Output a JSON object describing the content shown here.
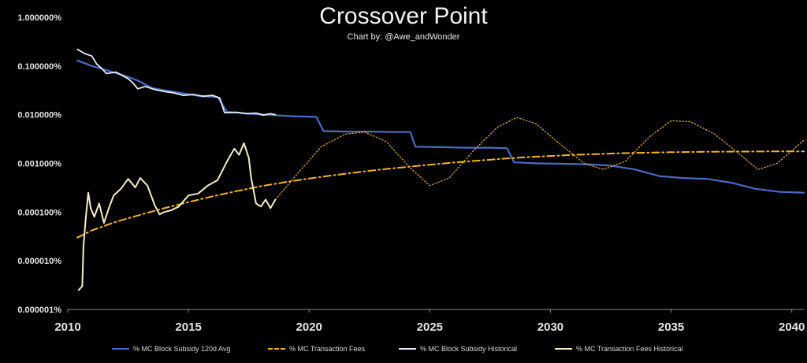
{
  "header": {
    "title": "Crossover Point",
    "subtitle": "Chart by: @Awe_andWonder"
  },
  "chart_data": {
    "type": "line",
    "title": "Crossover Point",
    "subtitle": "Chart by: @Awe_andWonder",
    "xlabel": "",
    "ylabel": "",
    "yscale": "log",
    "xlim": [
      2010,
      2040.5
    ],
    "ylim": [
      1e-08,
      0.01
    ],
    "y_ticks": [
      "0.000001%",
      "0.000010%",
      "0.000100%",
      "0.001000%",
      "0.010000%",
      "0.100000%",
      "1.000000%"
    ],
    "x_ticks": [
      "2010",
      "2015",
      "2020",
      "2025",
      "2030",
      "2035",
      "2040"
    ],
    "x_tick_values": [
      2010,
      2015,
      2020,
      2025,
      2030,
      2035,
      2040
    ],
    "grid": false,
    "legend_position": "bottom",
    "colors": {
      "subsidy_120d": "#4a6bc4",
      "fees_projection": "#f0b429",
      "subsidy_hist": "#e8edf5",
      "fees_hist": "#f6edc8"
    },
    "series": [
      {
        "name": "% MC Block Subsidy 120d Avg",
        "style": "solid",
        "x": [
          2010.4,
          2011,
          2011.5,
          2012.5,
          2012.9,
          2013.5,
          2014.5,
          2015.5,
          2016.2,
          2016.6,
          2017.5,
          2018.5,
          2019.3,
          2020.3,
          2020.6,
          2021.5,
          2022.5,
          2023.5,
          2024.2,
          2024.4,
          2025.5,
          2026.5,
          2027.5,
          2028.2,
          2028.5,
          2029.5,
          2030.5,
          2031.5,
          2032.5,
          2033.5,
          2034.5,
          2035.5,
          2036.5,
          2037.5,
          2038.5,
          2039.5,
          2040.5
        ],
        "y": [
          0.0013,
          0.001,
          0.00085,
          0.0006,
          0.0005,
          0.00035,
          0.00029,
          0.00024,
          0.00023,
          0.000115,
          0.000105,
          9.8e-05,
          9.3e-05,
          9e-05,
          4.6e-05,
          4.5e-05,
          4.5e-05,
          4.4e-05,
          4.4e-05,
          2.2e-05,
          2.15e-05,
          2.1e-05,
          2.1e-05,
          2.05e-05,
          1.05e-05,
          1e-05,
          9.8e-06,
          9.6e-06,
          9e-06,
          7.5e-06,
          5.5e-06,
          5e-06,
          4.8e-06,
          4e-06,
          3e-06,
          2.6e-06,
          2.5e-06
        ]
      },
      {
        "name": "% MC Transaction Fees",
        "style": "dashdot",
        "x": [
          2010.4,
          2011,
          2012,
          2013,
          2014,
          2015,
          2016,
          2017,
          2018,
          2019,
          2020,
          2021,
          2022,
          2023,
          2024,
          2025,
          2026,
          2027,
          2028,
          2029,
          2030,
          2031,
          2032,
          2033,
          2034,
          2035,
          2036,
          2037,
          2038,
          2039,
          2040.5
        ],
        "y": [
          3e-07,
          4.2e-07,
          6.3e-07,
          8.8e-07,
          1.2e-06,
          1.6e-06,
          2.1e-06,
          2.7e-06,
          3.4e-06,
          4.1e-06,
          4.9e-06,
          5.7e-06,
          6.6e-06,
          7.5e-06,
          8.4e-06,
          9.4e-06,
          1.04e-05,
          1.14e-05,
          1.24e-05,
          1.34e-05,
          1.42e-05,
          1.5e-05,
          1.56e-05,
          1.62e-05,
          1.66e-05,
          1.7e-05,
          1.72e-05,
          1.74e-05,
          1.75e-05,
          1.76e-05,
          1.77e-05
        ]
      },
      {
        "name": "% MC Block Subsidy Historical",
        "style": "solid",
        "x": [
          2010.4,
          2010.7,
          2011.0,
          2011.2,
          2011.4,
          2011.6,
          2012.0,
          2012.5,
          2012.7,
          2012.9,
          2013.2,
          2013.6,
          2014.0,
          2014.4,
          2014.8,
          2015.2,
          2015.6,
          2016.0,
          2016.3,
          2016.5,
          2016.7,
          2017.0,
          2017.4,
          2017.8,
          2018.1,
          2018.4,
          2018.6
        ],
        "y": [
          0.0022,
          0.0018,
          0.0016,
          0.0011,
          0.0009,
          0.0007,
          0.00075,
          0.00055,
          0.00045,
          0.00034,
          0.00038,
          0.00033,
          0.0003,
          0.00028,
          0.00025,
          0.00026,
          0.00024,
          0.00025,
          0.00022,
          0.00011,
          0.00011,
          0.000112,
          0.000105,
          0.000108,
          9.8e-05,
          0.000105,
          0.0001
        ]
      },
      {
        "name": "% MC Transaction Fees Historical",
        "style": "solid",
        "x": [
          2010.45,
          2010.6,
          2010.65,
          2010.75,
          2010.85,
          2010.95,
          2011.1,
          2011.3,
          2011.5,
          2011.7,
          2011.9,
          2012.2,
          2012.5,
          2012.8,
          2013.0,
          2013.3,
          2013.6,
          2013.8,
          2014.0,
          2014.3,
          2014.6,
          2015.0,
          2015.4,
          2015.8,
          2016.2,
          2016.6,
          2016.9,
          2017.1,
          2017.3,
          2017.5,
          2017.6,
          2017.8,
          2018.0,
          2018.2,
          2018.4,
          2018.6
        ],
        "y": [
          2.5e-08,
          3e-08,
          2e-07,
          8e-07,
          2.5e-06,
          1.2e-06,
          8e-07,
          1.5e-06,
          6e-07,
          1.2e-06,
          2.2e-06,
          3e-06,
          4.8e-06,
          3.2e-06,
          5e-06,
          3.5e-06,
          1.4e-06,
          9e-07,
          1e-06,
          1.1e-06,
          1.3e-06,
          2.2e-06,
          2.4e-06,
          3.5e-06,
          4.5e-06,
          1.1e-05,
          2e-05,
          1.5e-05,
          2.6e-05,
          1.3e-05,
          5e-06,
          1.5e-06,
          1.3e-06,
          1.8e-06,
          1.2e-06,
          1.8e-06
        ]
      },
      {
        "name": "",
        "style": "dotted",
        "x": [
          2018.6,
          2019.5,
          2020.5,
          2021.5,
          2022.3,
          2023.2,
          2024.2,
          2025.0,
          2025.8,
          2026.8,
          2027.8,
          2028.6,
          2029.4,
          2030.4,
          2031.4,
          2032.2,
          2033.1,
          2034.1,
          2035.0,
          2035.8,
          2036.8,
          2037.8,
          2038.6,
          2039.4,
          2040.5
        ],
        "y": [
          1.8e-06,
          6e-06,
          2.2e-05,
          4e-05,
          4.4e-05,
          2.8e-05,
          8e-06,
          3.5e-06,
          5e-06,
          1.8e-05,
          5.5e-05,
          8.8e-05,
          6.5e-05,
          2.5e-05,
          1e-05,
          7.5e-06,
          1.1e-05,
          3.5e-05,
          7.5e-05,
          7.2e-05,
          4e-05,
          1.6e-05,
          7.5e-06,
          1e-05,
          3e-05
        ]
      }
    ]
  }
}
